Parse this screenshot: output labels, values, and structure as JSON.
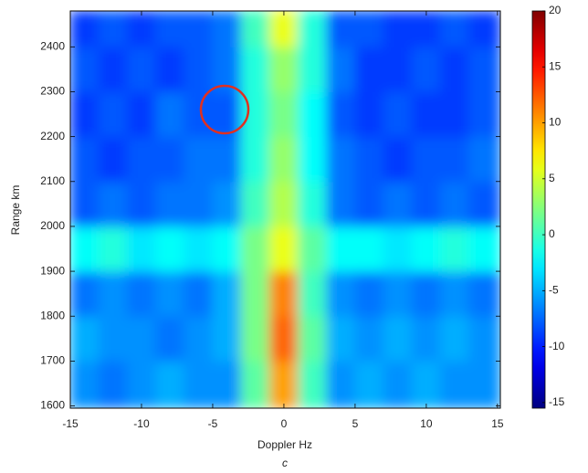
{
  "chart_data": {
    "type": "heatmap",
    "xlabel": "Doppler Hz",
    "ylabel": "Range km",
    "caption": "c",
    "x": [
      -14,
      -12,
      -10,
      -8,
      -6,
      -4,
      -2,
      0,
      2,
      4,
      6,
      8,
      10,
      12,
      14
    ],
    "y": [
      1650,
      1750,
      1850,
      1950,
      2050,
      2150,
      2250,
      2350,
      2450
    ],
    "z": [
      [
        -6,
        -7,
        -6,
        -5,
        -6,
        -6,
        1,
        10,
        0,
        -6,
        -5,
        -6,
        -5,
        -6,
        -6
      ],
      [
        -5,
        -6,
        -6,
        -7,
        -6,
        -5,
        2,
        12,
        1,
        -5,
        -6,
        -5,
        -6,
        -5,
        -6
      ],
      [
        -7,
        -6,
        -7,
        -6,
        -7,
        -5,
        2,
        11,
        0,
        -6,
        -7,
        -6,
        -7,
        -6,
        -7
      ],
      [
        -2,
        -1,
        -3,
        -2,
        -3,
        -2,
        2,
        6,
        1,
        -2,
        -2,
        -3,
        -2,
        -1,
        -2
      ],
      [
        -8,
        -7,
        -8,
        -7,
        -7,
        -6,
        0,
        4,
        -1,
        -7,
        -8,
        -7,
        -8,
        -7,
        -8
      ],
      [
        -8,
        -9,
        -8,
        -8,
        -7,
        -7,
        -1,
        3,
        -2,
        -7,
        -8,
        -9,
        -8,
        -8,
        -7
      ],
      [
        -9,
        -8,
        -9,
        -7,
        -8,
        -8,
        -1,
        2,
        -2,
        -8,
        -9,
        -8,
        -9,
        -9,
        -8
      ],
      [
        -8,
        -9,
        -8,
        -9,
        -8,
        -7,
        -1,
        3,
        -1,
        -7,
        -9,
        -9,
        -8,
        -9,
        -8
      ],
      [
        -9,
        -8,
        -9,
        -8,
        -8,
        -7,
        0,
        6,
        -1,
        -8,
        -8,
        -9,
        -9,
        -8,
        -9
      ]
    ],
    "xlim": [
      -15,
      15.2
    ],
    "xticks": [
      -15,
      -10,
      -5,
      0,
      5,
      10,
      15
    ],
    "ylim": [
      1595,
      2480
    ],
    "yticks": [
      1600,
      1700,
      1800,
      1900,
      2000,
      2100,
      2200,
      2300,
      2400
    ],
    "clim": [
      -15.5,
      20
    ],
    "cticks": [
      -15,
      -10,
      -5,
      0,
      5,
      10,
      15,
      20
    ],
    "colormap": "jet"
  }
}
